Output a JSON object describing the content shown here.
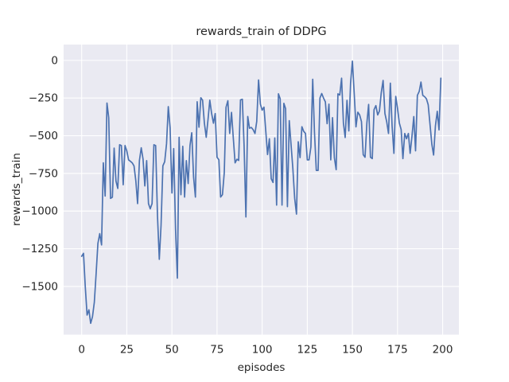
{
  "figure": {
    "title": "rewards_train of DDPG",
    "xlabel": "episodes",
    "ylabel": "rewards_train"
  },
  "chart_data": {
    "type": "line",
    "title": "rewards_train of DDPG",
    "xlabel": "episodes",
    "ylabel": "rewards_train",
    "grid": true,
    "legend_position": "none",
    "xlim": [
      -10,
      209
    ],
    "ylim": [
      -1820,
      105
    ],
    "xticks": [
      0,
      25,
      50,
      75,
      100,
      125,
      150,
      175,
      200
    ],
    "yticks": [
      0,
      -250,
      -500,
      -750,
      -1000,
      -1250,
      -1500
    ],
    "x_start": 0,
    "x_step": 1,
    "series": [
      {
        "name": "rewards_train",
        "values": [
          -1300,
          -1280,
          -1500,
          -1690,
          -1655,
          -1745,
          -1700,
          -1605,
          -1420,
          -1215,
          -1150,
          -1225,
          -680,
          -900,
          -283,
          -380,
          -916,
          -908,
          -582,
          -800,
          -850,
          -560,
          -565,
          -825,
          -565,
          -600,
          -660,
          -670,
          -680,
          -700,
          -800,
          -950,
          -665,
          -580,
          -657,
          -833,
          -665,
          -950,
          -985,
          -950,
          -560,
          -565,
          -1030,
          -1320,
          -1095,
          -700,
          -672,
          -553,
          -307,
          -448,
          -880,
          -585,
          -1118,
          -1445,
          -510,
          -891,
          -570,
          -907,
          -665,
          -817,
          -564,
          -480,
          -775,
          -907,
          -274,
          -443,
          -248,
          -264,
          -417,
          -510,
          -390,
          -264,
          -353,
          -417,
          -353,
          -643,
          -659,
          -907,
          -891,
          -744,
          -311,
          -268,
          -485,
          -345,
          -512,
          -680,
          -656,
          -664,
          -262,
          -258,
          -564,
          -1039,
          -372,
          -450,
          -445,
          -460,
          -485,
          -405,
          -130,
          -290,
          -330,
          -310,
          -470,
          -625,
          -520,
          -785,
          -810,
          -515,
          -960,
          -222,
          -255,
          -960,
          -285,
          -320,
          -970,
          -400,
          -555,
          -715,
          -915,
          -1020,
          -540,
          -645,
          -440,
          -470,
          -485,
          -660,
          -660,
          -575,
          -125,
          -475,
          -730,
          -730,
          -250,
          -220,
          -250,
          -275,
          -420,
          -290,
          -660,
          -380,
          -645,
          -725,
          -222,
          -230,
          -118,
          -415,
          -512,
          -265,
          -468,
          -151,
          -5,
          -222,
          -441,
          -344,
          -362,
          -406,
          -626,
          -643,
          -415,
          -292,
          -643,
          -652,
          -327,
          -300,
          -362,
          -336,
          -213,
          -133,
          -353,
          -406,
          -485,
          -151,
          -435,
          -617,
          -239,
          -318,
          -415,
          -459,
          -652,
          -485,
          -520,
          -485,
          -617,
          -503,
          -373,
          -600,
          -232,
          -206,
          -144,
          -232,
          -241,
          -255,
          -294,
          -426,
          -557,
          -628,
          -434,
          -338,
          -461,
          -118
        ]
      }
    ],
    "style": {
      "line_color": "#4c72b0",
      "line_width": 1.7,
      "axes_background": "#eaeaf2",
      "grid_color": "#ffffff",
      "text_color": "#262626",
      "figure_background": "#ffffff"
    }
  }
}
